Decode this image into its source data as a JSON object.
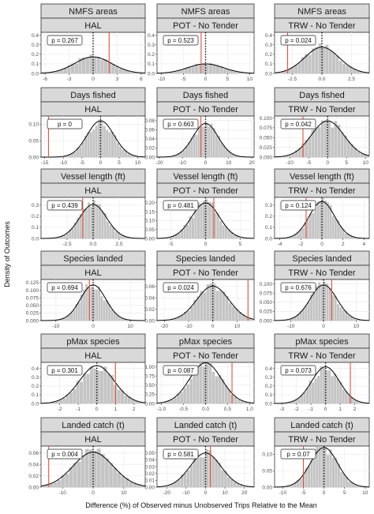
{
  "figure": {
    "ylabel": "Density of Outcomes",
    "xlabel": "Difference (%) of Observed minus Unobserved Trips Relative to the Mean"
  },
  "style": {
    "strip_bg": "#d9d9d9",
    "strip_border": "#333333",
    "bar_color": "#c4c4c4",
    "curve_color": "#000000",
    "observed_line_color": "#e8503a",
    "grid_color": "#ebebeb"
  },
  "chart_data": [
    {
      "type": "bar",
      "row": 0,
      "col": 0,
      "facet_top": "NMFS areas",
      "facet_sub": "HAL",
      "p_label": "p = 0.267",
      "xlim": [
        -6.5,
        6.5
      ],
      "ylim": [
        0,
        0.43
      ],
      "xticks": [
        -6,
        -3,
        0,
        3,
        6
      ],
      "yticks": [
        0.0,
        0.1,
        0.2,
        0.3,
        0.4
      ],
      "ytick_labels": [
        "0.0",
        "0.1",
        "0.2",
        "0.3",
        "0.4"
      ],
      "mean": 0,
      "sd": 2.3,
      "observed": 2.0
    },
    {
      "type": "bar",
      "row": 0,
      "col": 1,
      "facet_top": "NMFS areas",
      "facet_sub": "POT - No Tender",
      "p_label": "p = 0.523",
      "xlim": [
        -11,
        11
      ],
      "ylim": [
        0,
        0.43
      ],
      "xticks": [
        -10,
        -5,
        0,
        5,
        10
      ],
      "yticks": [
        0.0,
        0.1,
        0.2,
        0.3,
        0.4
      ],
      "ytick_labels": [
        "0.0",
        "0.1",
        "0.2",
        "0.3",
        "0.4"
      ],
      "mean": 0,
      "sd": 4.0,
      "observed": -1.0
    },
    {
      "type": "bar",
      "row": 0,
      "col": 2,
      "facet_top": "NMFS areas",
      "facet_sub": "TRW - No Tender",
      "p_label": "p = 0.024",
      "xlim": [
        -4,
        4
      ],
      "ylim": [
        0,
        0.43
      ],
      "xticks": [
        -2.5,
        0.0,
        2.5
      ],
      "xtick_labels": [
        "-2.5",
        "0.0",
        "2.5"
      ],
      "yticks": [
        0.0,
        0.1,
        0.2,
        0.3,
        0.4
      ],
      "ytick_labels": [
        "0.0",
        "0.1",
        "0.2",
        "0.3",
        "0.4"
      ],
      "mean": 0,
      "sd": 1.45,
      "observed": -2.9
    },
    {
      "type": "bar",
      "row": 1,
      "col": 0,
      "facet_top": "Days fished",
      "facet_sub": "HAL",
      "p_label": "p = 0",
      "xlim": [
        -16,
        12
      ],
      "ylim": [
        0,
        0.125
      ],
      "xticks": [
        -15,
        -10,
        -5,
        0,
        5,
        10
      ],
      "yticks": [
        0.0,
        0.05,
        0.1
      ],
      "ytick_labels": [
        "0.00",
        "0.05",
        "0.10"
      ],
      "mean": 0,
      "sd": 3.6,
      "observed": -14.0
    },
    {
      "type": "bar",
      "row": 1,
      "col": 1,
      "facet_top": "Days fished",
      "facet_sub": "POT - No Tender",
      "p_label": "p = 0.663",
      "xlim": [
        -21,
        21
      ],
      "ylim": [
        0,
        0.09
      ],
      "xticks": [
        -20,
        -10,
        0,
        10,
        20
      ],
      "yticks": [
        0.0,
        0.02,
        0.04,
        0.06,
        0.08
      ],
      "ytick_labels": [
        "0.00",
        "0.02",
        "0.04",
        "0.06",
        "0.08"
      ],
      "mean": 0,
      "sd": 5.4,
      "observed": -2.0
    },
    {
      "type": "bar",
      "row": 1,
      "col": 2,
      "facet_top": "Days fished",
      "facet_sub": "TRW - No Tender",
      "p_label": "p = 0.042",
      "xlim": [
        -14,
        11
      ],
      "ylim": [
        0,
        0.105
      ],
      "xticks": [
        -10,
        -5,
        0,
        5,
        10
      ],
      "yticks": [
        0.0,
        0.025,
        0.05,
        0.075,
        0.1
      ],
      "ytick_labels": [
        "0.000",
        "0.025",
        "0.050",
        "0.075",
        "0.100"
      ],
      "mean": 0,
      "sd": 4.3,
      "observed": -6.5
    },
    {
      "type": "bar",
      "row": 2,
      "col": 0,
      "facet_top": "Vessel length (ft)",
      "facet_sub": "HAL",
      "p_label": "p = 0.439",
      "xlim": [
        -5,
        5
      ],
      "ylim": [
        0,
        0.37
      ],
      "xticks": [
        -2.5,
        0.0,
        2.5
      ],
      "xtick_labels": [
        "-2.5",
        "0.0",
        "2.5"
      ],
      "yticks": [
        0.0,
        0.1,
        0.2,
        0.3
      ],
      "ytick_labels": [
        "0.0",
        "0.1",
        "0.2",
        "0.3"
      ],
      "mean": 0,
      "sd": 1.3,
      "observed": -1.0
    },
    {
      "type": "bar",
      "row": 2,
      "col": 1,
      "facet_top": "Vessel length (ft)",
      "facet_sub": "POT - No Tender",
      "p_label": "p = 0.481",
      "xlim": [
        -7,
        7
      ],
      "ylim": [
        0,
        0.23
      ],
      "xticks": [
        -5,
        0,
        5
      ],
      "yticks": [
        0.0,
        0.05,
        0.1,
        0.15,
        0.2
      ],
      "ytick_labels": [
        "0.00",
        "0.05",
        "0.10",
        "0.15",
        "0.20"
      ],
      "mean": 0,
      "sd": 2.0,
      "observed": 1.2
    },
    {
      "type": "bar",
      "row": 2,
      "col": 2,
      "facet_top": "Vessel length (ft)",
      "facet_sub": "TRW - No Tender",
      "p_label": "p = 0.124",
      "xlim": [
        -4.5,
        4.5
      ],
      "ylim": [
        0,
        0.37
      ],
      "xticks": [
        -4,
        -2,
        0,
        2,
        4
      ],
      "yticks": [
        0.0,
        0.1,
        0.2,
        0.3
      ],
      "ytick_labels": [
        "0.0",
        "0.1",
        "0.2",
        "0.3"
      ],
      "mean": 0,
      "sd": 1.2,
      "observed": -1.5
    },
    {
      "type": "bar",
      "row": 3,
      "col": 0,
      "facet_top": "Species landed",
      "facet_sub": "HAL",
      "p_label": "p = 0.694",
      "xlim": [
        -14,
        14
      ],
      "ylim": [
        0,
        0.135
      ],
      "xticks": [
        -10,
        0,
        10
      ],
      "yticks": [
        0.0,
        0.025,
        0.05,
        0.075,
        0.1,
        0.125
      ],
      "ytick_labels": [
        "0.000",
        "0.025",
        "0.050",
        "0.075",
        "0.100",
        "0.125"
      ],
      "mean": 0,
      "sd": 3.4,
      "observed": -1.0
    },
    {
      "type": "bar",
      "row": 3,
      "col": 1,
      "facet_top": "Species landed",
      "facet_sub": "POT - No Tender",
      "p_label": "p = 0.024",
      "xlim": [
        -23,
        17
      ],
      "ylim": [
        0,
        0.072
      ],
      "xticks": [
        -20,
        -10,
        0,
        10
      ],
      "yticks": [
        0.0,
        0.02,
        0.04,
        0.06
      ],
      "ytick_labels": [
        "0.00",
        "0.02",
        "0.04",
        "0.06"
      ],
      "mean": 0,
      "sd": 6.6,
      "observed": 14.5
    },
    {
      "type": "bar",
      "row": 3,
      "col": 2,
      "facet_top": "Species landed",
      "facet_sub": "TRW - No Tender",
      "p_label": "p = 0.676",
      "xlim": [
        -15,
        14
      ],
      "ylim": [
        0,
        0.112
      ],
      "xticks": [
        -10,
        0,
        10
      ],
      "yticks": [
        0.0,
        0.025,
        0.05,
        0.075,
        0.1
      ],
      "ytick_labels": [
        "0.000",
        "0.025",
        "0.050",
        "0.075",
        "0.100"
      ],
      "mean": 0,
      "sd": 4.1,
      "observed": 2.5
    },
    {
      "type": "bar",
      "row": 4,
      "col": 0,
      "facet_top": "pMax species",
      "facet_sub": "HAL",
      "p_label": "p = 0.301",
      "xlim": [
        -3,
        2.6
      ],
      "ylim": [
        0,
        0.47
      ],
      "xticks": [
        -2,
        -1,
        0,
        1,
        2
      ],
      "yticks": [
        0.0,
        0.1,
        0.2,
        0.3,
        0.4
      ],
      "ytick_labels": [
        "0.0",
        "0.1",
        "0.2",
        "0.3",
        "0.4"
      ],
      "mean": 0,
      "sd": 0.92,
      "observed": 1.0
    },
    {
      "type": "bar",
      "row": 4,
      "col": 1,
      "facet_top": "pMax species",
      "facet_sub": "POT - No Tender",
      "p_label": "p = 0.087",
      "xlim": [
        -1.1,
        1.1
      ],
      "ylim": [
        0,
        1.12
      ],
      "xticks": [
        -1.0,
        -0.5,
        0.0,
        0.5,
        1.0
      ],
      "xtick_labels": [
        "-1.0",
        "-0.5",
        "0.0",
        "0.5",
        "1.0"
      ],
      "yticks": [
        0.0,
        0.25,
        0.5,
        0.75,
        1.0
      ],
      "ytick_labels": [
        "0.00",
        "0.25",
        "0.50",
        "0.75",
        "1.00"
      ],
      "mean": 0,
      "sd": 0.36,
      "observed": 0.6
    },
    {
      "type": "bar",
      "row": 4,
      "col": 2,
      "facet_top": "pMax species",
      "facet_sub": "TRW - No Tender",
      "p_label": "p = 0.073",
      "xlim": [
        -3.5,
        3
      ],
      "ylim": [
        0,
        0.47
      ],
      "xticks": [
        -3,
        -2,
        -1,
        0,
        1,
        2
      ],
      "yticks": [
        0.0,
        0.1,
        0.2,
        0.3,
        0.4
      ],
      "ytick_labels": [
        "0.0",
        "0.1",
        "0.2",
        "0.3",
        "0.4"
      ],
      "mean": 0,
      "sd": 0.95,
      "observed": 1.7
    },
    {
      "type": "bar",
      "row": 5,
      "col": 0,
      "facet_top": "Landed catch (t)",
      "facet_sub": "HAL",
      "p_label": "p = 0.004",
      "xlim": [
        -17,
        17
      ],
      "ylim": [
        0,
        0.072
      ],
      "xticks": [
        -10,
        0,
        10
      ],
      "yticks": [
        0.0,
        0.02,
        0.04,
        0.06
      ],
      "ytick_labels": [
        "0.00",
        "0.02",
        "0.04",
        "0.06"
      ],
      "mean": 0,
      "sd": 6.5,
      "observed": -14.5
    },
    {
      "type": "bar",
      "row": 5,
      "col": 1,
      "facet_top": "Landed catch (t)",
      "facet_sub": "POT - No Tender",
      "p_label": "p = 0.581",
      "xlim": [
        -25,
        25
      ],
      "ylim": [
        0,
        0.06
      ],
      "xticks": [
        -20,
        -10,
        0,
        10,
        20
      ],
      "yticks": [
        0.0,
        0.01,
        0.02,
        0.03,
        0.04,
        0.05
      ],
      "ytick_labels": [
        "0.00",
        "0.01",
        "0.02",
        "0.03",
        "0.04",
        "0.05"
      ],
      "mean": 0,
      "sd": 8.0,
      "observed": 2.5
    },
    {
      "type": "bar",
      "row": 5,
      "col": 2,
      "facet_top": "Landed catch (t)",
      "facet_sub": "TRW - No Tender",
      "p_label": "p = 0.07",
      "xlim": [
        -12,
        11
      ],
      "ylim": [
        0,
        0.125
      ],
      "xticks": [
        -10,
        -5,
        0,
        5,
        10
      ],
      "yticks": [
        0.0,
        0.05,
        0.1
      ],
      "ytick_labels": [
        "0.00",
        "0.05",
        "0.10"
      ],
      "mean": 0,
      "sd": 3.3,
      "observed": -5.0
    }
  ]
}
